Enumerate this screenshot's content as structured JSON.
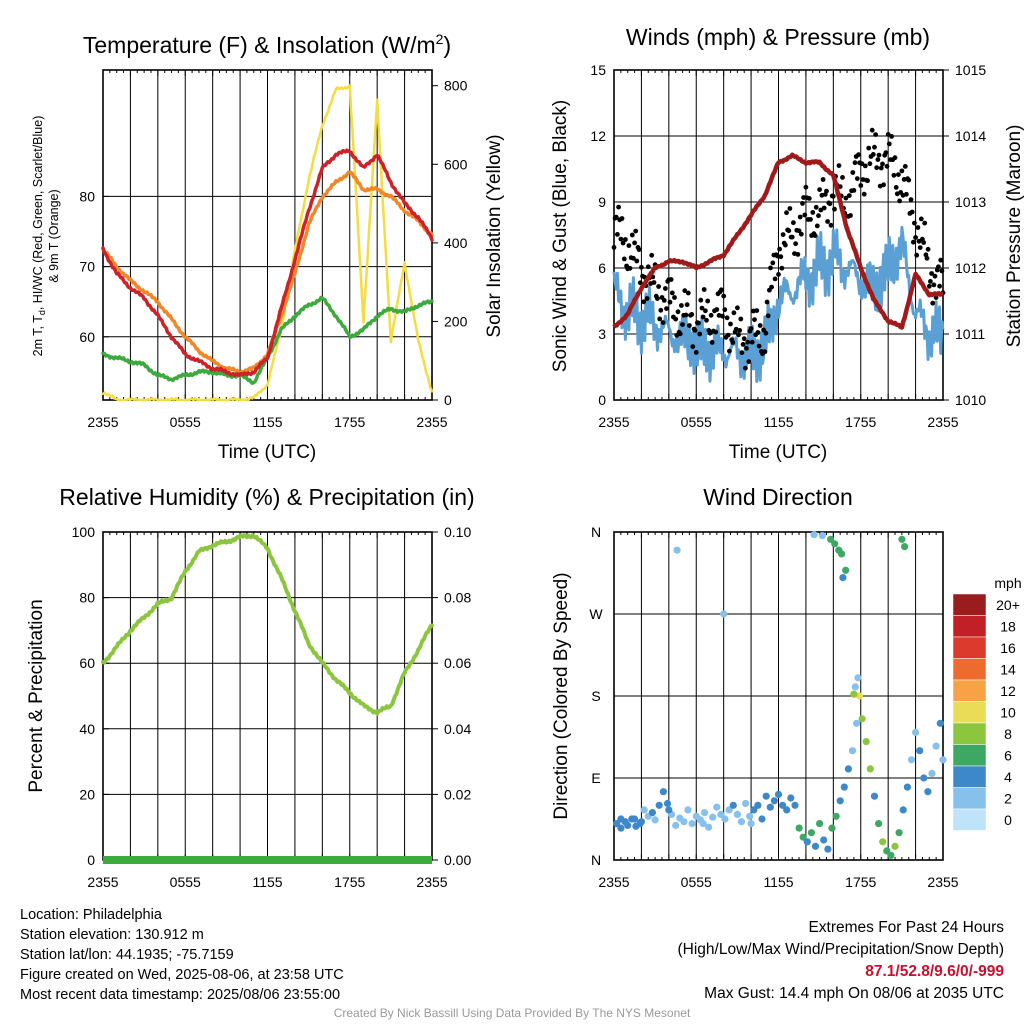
{
  "chart_data": [
    {
      "type": "line",
      "title": "Temperature (F) & Insolation (W/m²)",
      "xlabel": "Time (UTC)",
      "ylabel_lines": [
        "2m T, Td, HI/WC (Red, Green, Scarlet/Blue)",
        "& 9m T (Orange)"
      ],
      "ylabel2": "Solar Insolation (Yellow)",
      "x_ticks": [
        "2355",
        "0555",
        "1155",
        "1755",
        "2355"
      ],
      "y_ticks": [
        60,
        70,
        80
      ],
      "y2_ticks": [
        0,
        200,
        400,
        600,
        800
      ],
      "ylim": [
        51,
        98
      ],
      "y2lim": [
        0,
        840
      ],
      "grid": true,
      "x_hours": [
        0,
        1,
        2,
        3,
        4,
        5,
        6,
        7,
        8,
        9,
        10,
        11,
        12,
        13,
        14,
        15,
        16,
        17,
        18,
        19,
        20,
        21,
        22,
        23,
        24
      ],
      "series": [
        {
          "name": "2m T",
          "axis": "left",
          "color": "#cc2229",
          "width": 3.5,
          "values": [
            72.5,
            69,
            67,
            65.5,
            63,
            60,
            57.5,
            56.5,
            55.5,
            55,
            54.5,
            55,
            57,
            64,
            71,
            78,
            84,
            86,
            86.5,
            84,
            86,
            82,
            79,
            77,
            74
          ]
        },
        {
          "name": "9m T",
          "axis": "left",
          "color": "#f0882a",
          "width": 3.5,
          "values": [
            72.5,
            70,
            68,
            66.5,
            65,
            62.5,
            60,
            58,
            56.5,
            55.5,
            55,
            55.5,
            57.5,
            63,
            69,
            76,
            80,
            82,
            83.5,
            81,
            81,
            80,
            78,
            76.5,
            74.5
          ]
        },
        {
          "name": "Td",
          "axis": "left",
          "color": "#3daa3d",
          "width": 3.5,
          "values": [
            57.5,
            57,
            56.5,
            56,
            54.5,
            54,
            54.5,
            55,
            55,
            54.5,
            54.5,
            53.5,
            57,
            61,
            63,
            64.5,
            65.5,
            63,
            60,
            61,
            63,
            64,
            63.5,
            64.5,
            65
          ]
        },
        {
          "name": "Solar Insolation",
          "axis": "right",
          "color": "#f5dc40",
          "width": 2.5,
          "values": [
            20,
            0,
            0,
            0,
            0,
            0,
            0,
            0,
            0,
            0,
            0,
            5,
            40,
            180,
            380,
            560,
            700,
            790,
            800,
            200,
            760,
            150,
            350,
            150,
            20
          ]
        }
      ]
    },
    {
      "type": "line",
      "title": "Winds (mph) & Pressure (mb)",
      "xlabel": "Time (UTC)",
      "ylabel": "Sonic Wind & Gust (Blue, Black)",
      "ylabel2": "Station Pressure (Maroon)",
      "x_ticks": [
        "2355",
        "0555",
        "1155",
        "1755",
        "2355"
      ],
      "y_ticks": [
        0,
        3,
        6,
        9,
        12,
        15
      ],
      "y2_ticks": [
        1010,
        1011,
        1012,
        1013,
        1014,
        1015
      ],
      "ylim": [
        0,
        15
      ],
      "y2lim": [
        1010,
        1015
      ],
      "grid": true,
      "x_hours": [
        0,
        1,
        2,
        3,
        4,
        5,
        6,
        7,
        8,
        9,
        10,
        11,
        12,
        13,
        14,
        15,
        16,
        17,
        18,
        19,
        20,
        21,
        22,
        23,
        24
      ],
      "series": [
        {
          "name": "Sonic Wind",
          "axis": "left",
          "color": "#5aa0d5",
          "width": 3,
          "values": [
            5,
            4,
            3.8,
            3.5,
            3,
            2.8,
            2.5,
            2.2,
            2.3,
            2.1,
            2,
            2.5,
            4.5,
            5,
            5.5,
            6,
            6.5,
            6,
            5.5,
            5,
            6,
            7,
            4,
            3,
            3
          ]
        },
        {
          "name": "Gust",
          "axis": "left",
          "color": "#000000",
          "width": 0,
          "values": [
            7.8,
            7,
            6,
            5,
            4.5,
            3.8,
            3.5,
            3.8,
            4,
            2.8,
            2.8,
            3.2,
            7,
            7.5,
            8.5,
            8.5,
            9.5,
            9,
            10.5,
            11,
            11,
            10,
            8,
            6,
            5
          ]
        },
        {
          "name": "Station Pressure",
          "axis": "right",
          "color": "#a11a1a",
          "width": 4.5,
          "values": [
            1011.1,
            1011.3,
            1011.7,
            1012.0,
            1012.1,
            1012.1,
            1012.0,
            1012.1,
            1012.2,
            1012.5,
            1012.8,
            1013.1,
            1013.6,
            1013.7,
            1013.6,
            1013.6,
            1013.4,
            1012.6,
            1012.0,
            1011.5,
            1011.2,
            1011.1,
            1011.9,
            1011.6,
            1011.6
          ]
        }
      ]
    },
    {
      "type": "line",
      "title": "Relative Humidity (%) & Precipitation (in)",
      "xlabel": "",
      "ylabel": "Percent & Precipitation",
      "x_ticks": [
        "2355",
        "0555",
        "1155",
        "1755",
        "2355"
      ],
      "y_ticks": [
        0,
        20,
        40,
        60,
        80,
        100
      ],
      "y2_ticks": [
        "0.00",
        "0.02",
        "0.04",
        "0.06",
        "0.08",
        "0.10"
      ],
      "ylim": [
        0,
        100
      ],
      "y2lim": [
        0,
        0.1
      ],
      "grid": true,
      "x_hours": [
        0,
        1,
        2,
        3,
        4,
        5,
        6,
        7,
        8,
        9,
        10,
        11,
        12,
        13,
        14,
        15,
        16,
        17,
        18,
        19,
        20,
        21,
        22,
        23,
        24
      ],
      "series": [
        {
          "name": "Relative Humidity",
          "axis": "left",
          "color": "#8cc63f",
          "width": 4,
          "values": [
            60,
            65,
            70,
            74,
            78,
            80,
            88,
            94,
            96,
            97,
            98.5,
            99,
            95,
            86,
            76,
            66,
            60,
            55,
            51,
            47,
            45,
            47,
            57,
            64,
            72
          ]
        },
        {
          "name": "Precipitation",
          "axis": "right",
          "color": "#3daa3d",
          "width": 8,
          "values": [
            0,
            0,
            0,
            0,
            0,
            0,
            0,
            0,
            0,
            0,
            0,
            0,
            0,
            0,
            0,
            0,
            0,
            0,
            0,
            0,
            0,
            0,
            0,
            0,
            0
          ]
        }
      ]
    },
    {
      "type": "scatter",
      "title": "Wind Direction",
      "xlabel": "",
      "ylabel": "Direction (Colored By Speed)",
      "x_ticks": [
        "2355",
        "0555",
        "1155",
        "1755",
        "2355"
      ],
      "y_ticks": [
        "N",
        "E",
        "S",
        "W",
        "N"
      ],
      "ylim": [
        0,
        360
      ],
      "grid": true,
      "colorbar": {
        "title": "mph",
        "labels": [
          "20+",
          "18",
          "16",
          "14",
          "12",
          "10",
          "8",
          "6",
          "4",
          "2",
          "0"
        ],
        "colors": [
          "#9b1c1c",
          "#c02026",
          "#dc3a2c",
          "#ef6a2e",
          "#f7a244",
          "#ebdc57",
          "#8cc63f",
          "#3da764",
          "#3d88c8",
          "#86c1eb",
          "#bfe3f8"
        ]
      },
      "points": [
        [
          0.2,
          40,
          4
        ],
        [
          0.5,
          35,
          4
        ],
        [
          0.8,
          42,
          3
        ],
        [
          1.0,
          38,
          4
        ],
        [
          1.3,
          45,
          3
        ],
        [
          1.6,
          37,
          4
        ],
        [
          1.9,
          40,
          4
        ],
        [
          2.2,
          55,
          2
        ],
        [
          2.5,
          48,
          2
        ],
        [
          2.8,
          52,
          3
        ],
        [
          3.0,
          44,
          2
        ],
        [
          3.3,
          60,
          3
        ],
        [
          3.6,
          75,
          4
        ],
        [
          3.9,
          62,
          4
        ],
        [
          4.2,
          50,
          2
        ],
        [
          4.5,
          38,
          2
        ],
        [
          4.8,
          46,
          2
        ],
        [
          5.1,
          42,
          1
        ],
        [
          5.4,
          55,
          2
        ],
        [
          5.7,
          40,
          2
        ],
        [
          6.0,
          48,
          2
        ],
        [
          6.3,
          44,
          1
        ],
        [
          6.6,
          52,
          2
        ],
        [
          6.9,
          36,
          2
        ],
        [
          7.2,
          47,
          1
        ],
        [
          7.5,
          58,
          2
        ],
        [
          7.8,
          50,
          2
        ],
        [
          8.1,
          45,
          2
        ],
        [
          8.4,
          55,
          2
        ],
        [
          8.7,
          60,
          3
        ],
        [
          9.0,
          50,
          2
        ],
        [
          9.3,
          42,
          2
        ],
        [
          9.6,
          62,
          2
        ],
        [
          9.9,
          48,
          2
        ],
        [
          10.2,
          55,
          3
        ],
        [
          10.5,
          60,
          3
        ],
        [
          10.8,
          45,
          3
        ],
        [
          11.1,
          70,
          3
        ],
        [
          11.4,
          58,
          3
        ],
        [
          11.7,
          65,
          4
        ],
        [
          12.0,
          72,
          4
        ],
        [
          12.3,
          60,
          4
        ],
        [
          12.6,
          55,
          4
        ],
        [
          12.9,
          68,
          4
        ],
        [
          13.2,
          60,
          4
        ],
        [
          13.5,
          35,
          6
        ],
        [
          13.8,
          25,
          6
        ],
        [
          14.1,
          20,
          4
        ],
        [
          14.4,
          30,
          6
        ],
        [
          14.7,
          15,
          4
        ],
        [
          15.0,
          40,
          6
        ],
        [
          15.3,
          22,
          4
        ],
        [
          15.6,
          12,
          4
        ],
        [
          15.9,
          35,
          6
        ],
        [
          16.2,
          48,
          6
        ],
        [
          16.5,
          65,
          4
        ],
        [
          16.8,
          80,
          4
        ],
        [
          17.1,
          100,
          4
        ],
        [
          17.4,
          120,
          2
        ],
        [
          17.7,
          150,
          2
        ],
        [
          17.9,
          180,
          10
        ],
        [
          18.1,
          155,
          8
        ],
        [
          18.4,
          130,
          8
        ],
        [
          18.7,
          100,
          8
        ],
        [
          19.0,
          70,
          4
        ],
        [
          19.3,
          40,
          6
        ],
        [
          19.6,
          20,
          8
        ],
        [
          19.9,
          10,
          6
        ],
        [
          20.2,
          5,
          6
        ],
        [
          20.5,
          15,
          8
        ],
        [
          20.8,
          30,
          6
        ],
        [
          21.1,
          55,
          4
        ],
        [
          21.4,
          80,
          4
        ],
        [
          21.7,
          110,
          2
        ],
        [
          22.0,
          140,
          2
        ],
        [
          22.3,
          120,
          4
        ],
        [
          22.6,
          90,
          4
        ],
        [
          22.9,
          75,
          4
        ],
        [
          23.2,
          95,
          2
        ],
        [
          23.5,
          125,
          2
        ],
        [
          23.8,
          150,
          4
        ],
        [
          24.0,
          110,
          2
        ],
        [
          0.5,
          45,
          4
        ],
        [
          1.5,
          45,
          4
        ],
        [
          2.0,
          42,
          4
        ],
        [
          4.0,
          55,
          4
        ],
        [
          6.5,
          40,
          2
        ],
        [
          10.0,
          40,
          2
        ],
        [
          15.8,
          352,
          6
        ],
        [
          16.1,
          347,
          6
        ],
        [
          16.4,
          340,
          6
        ],
        [
          15.2,
          356,
          2
        ],
        [
          14.6,
          357,
          2
        ],
        [
          16.7,
          310,
          4
        ],
        [
          21.0,
          352,
          6
        ],
        [
          21.2,
          344,
          6
        ],
        [
          16.6,
          336,
          6
        ],
        [
          16.9,
          318,
          6
        ],
        [
          4.6,
          340,
          1
        ],
        [
          8.0,
          270,
          1
        ],
        [
          17.8,
          200,
          2
        ],
        [
          17.6,
          190,
          2
        ],
        [
          17.5,
          182,
          8
        ]
      ]
    }
  ],
  "info": {
    "location": "Location: Philadelphia",
    "elevation": "Station elevation: 130.912 m",
    "latlon": "Station lat/lon: 44.1935; -75.7159",
    "created": "Figure created on Wed, 2025-08-06, at 23:58 UTC",
    "recent": "Most recent data timestamp: 2025/08/06 23:55:00"
  },
  "extremes": {
    "title": "Extremes For Past 24 Hours",
    "subtitle": "(High/Low/Max Wind/Precipitation/Snow Depth)",
    "values": "87.1/52.8/9.6/0/-999",
    "max_gust": "Max Gust: 14.4 mph On 08/06 at 2035 UTC"
  },
  "credit": "Created By Nick Bassill Using Data Provided By The NYS Mesonet"
}
